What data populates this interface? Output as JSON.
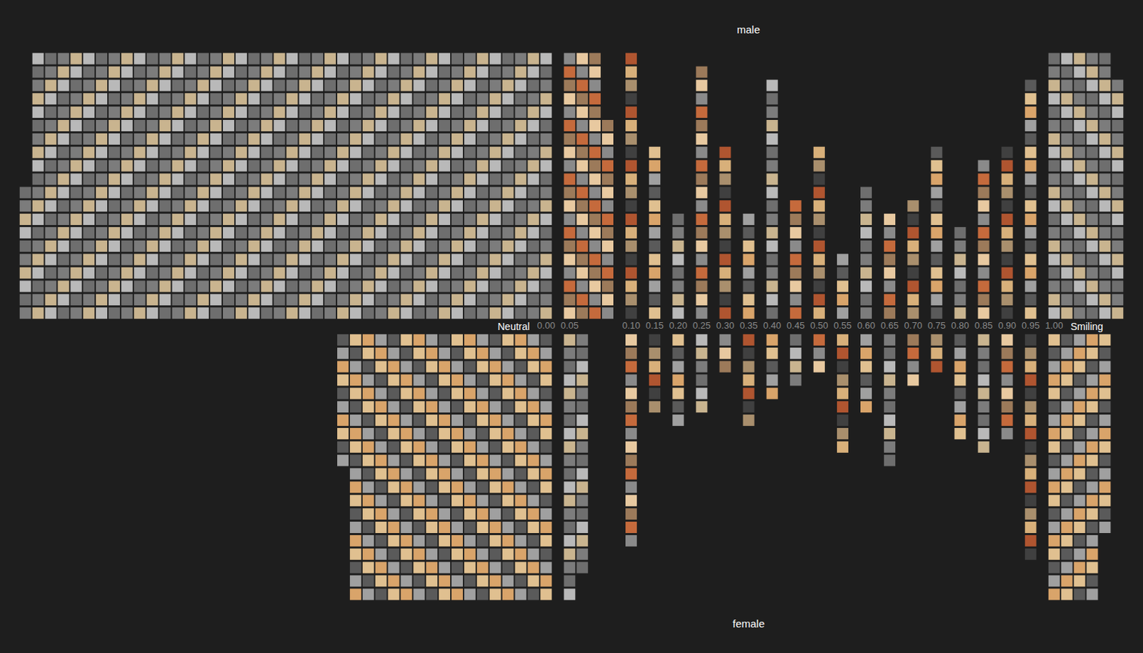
{
  "chart_data": {
    "type": "waffle",
    "categories": [
      "0.00",
      "0.05",
      "0.10",
      "0.15",
      "0.20",
      "0.25",
      "0.30",
      "0.35",
      "0.40",
      "0.45",
      "0.50",
      "0.55",
      "0.60",
      "0.65",
      "0.70",
      "0.75",
      "0.80",
      "0.85",
      "0.90",
      "0.95",
      "1.00"
    ],
    "series": [
      {
        "name": "male",
        "values": [
          830,
          75,
          20,
          13,
          8,
          19,
          13,
          8,
          18,
          9,
          13,
          5,
          10,
          8,
          9,
          13,
          7,
          12,
          13,
          18,
          118
        ]
      },
      {
        "name": "female",
        "values": [
          330,
          38,
          16,
          6,
          7,
          6,
          3,
          7,
          5,
          4,
          3,
          9,
          6,
          10,
          4,
          3,
          8,
          9,
          8,
          17,
          95
        ]
      }
    ],
    "annotations": [
      {
        "text": "Neutral",
        "at": "0.00"
      },
      {
        "text": "Smiling",
        "at": "1.00"
      }
    ]
  }
}
